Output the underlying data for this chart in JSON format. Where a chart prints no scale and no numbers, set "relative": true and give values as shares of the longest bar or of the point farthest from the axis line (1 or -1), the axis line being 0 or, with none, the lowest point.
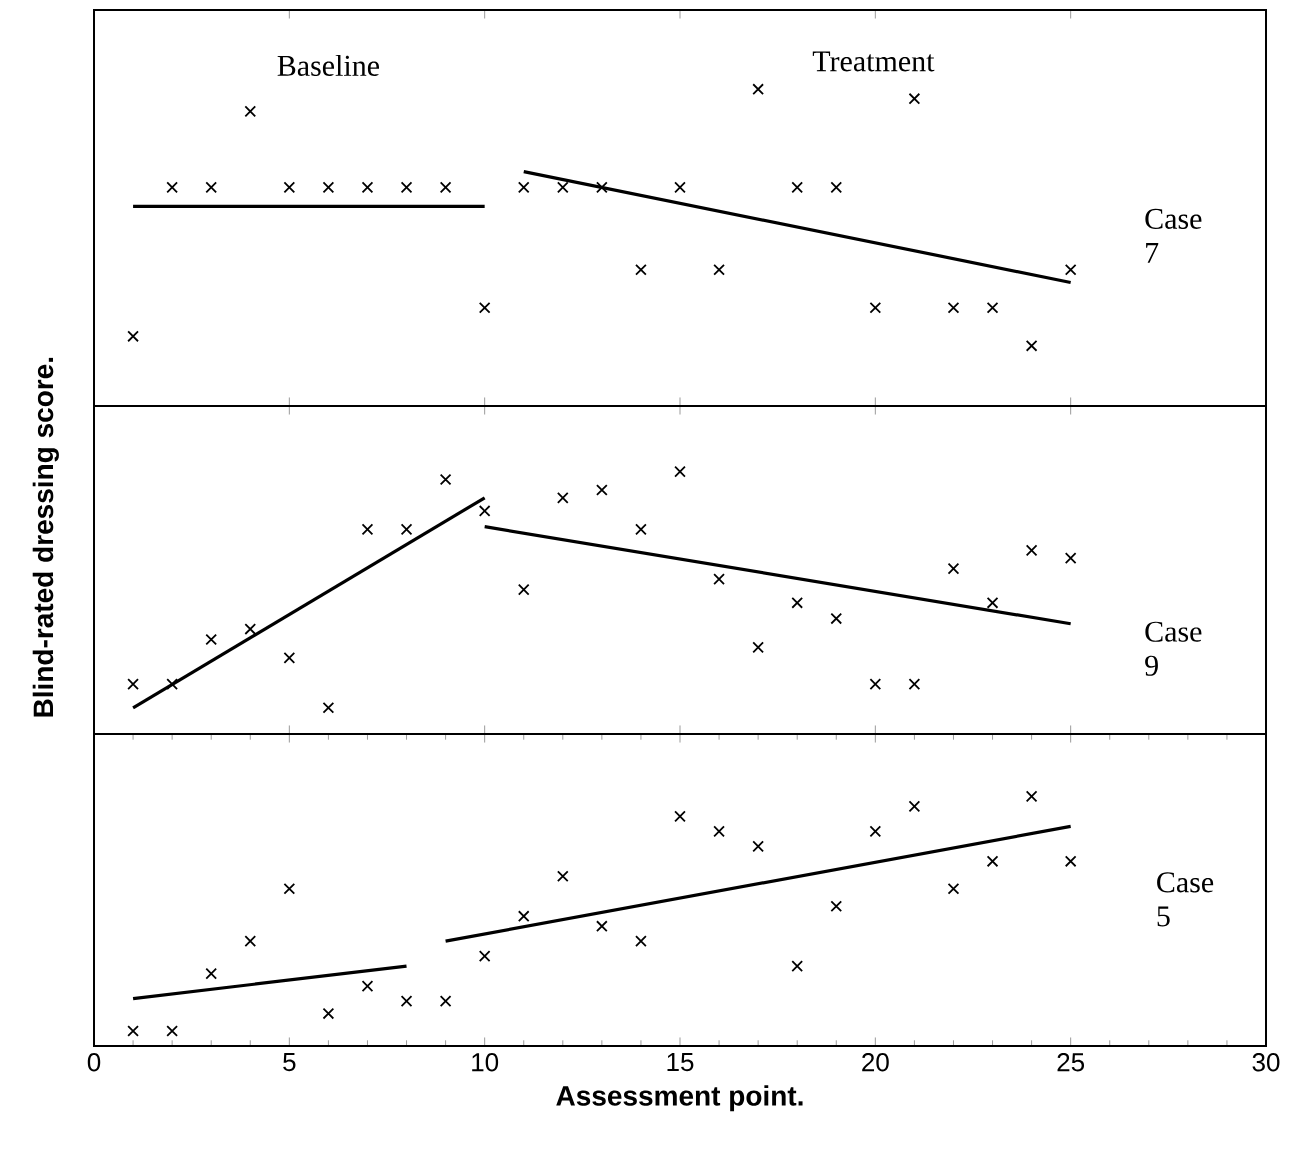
{
  "chart_data": [
    {
      "type": "scatter",
      "relative": true,
      "xlim": [
        0,
        30
      ],
      "xticks": [
        0,
        5,
        10,
        15,
        20,
        25,
        30
      ],
      "tick_labels": false,
      "annotations": [
        "Baseline",
        "Treatment",
        "Case 7"
      ],
      "series": [
        {
          "marker": "cross",
          "color": "#000000",
          "x": [
            1,
            2,
            3,
            4,
            5,
            6,
            7,
            8,
            9,
            10,
            11,
            12,
            13,
            14,
            15,
            16,
            17,
            18,
            19,
            20,
            21,
            22,
            23,
            24,
            25
          ],
          "values": [
            0.22,
            0.69,
            0.69,
            0.93,
            0.69,
            0.69,
            0.69,
            0.69,
            0.69,
            0.31,
            0.69,
            0.69,
            0.69,
            0.43,
            0.69,
            0.43,
            1,
            0.69,
            0.69,
            0.31,
            0.97,
            0.31,
            0.31,
            0.19,
            0.43
          ]
        },
        {
          "type": "line",
          "color": "#000000",
          "x": [
            1,
            10
          ],
          "values": [
            0.63,
            0.63
          ]
        },
        {
          "type": "line",
          "color": "#000000",
          "x": [
            11,
            25
          ],
          "values": [
            0.74,
            0.39
          ]
        }
      ]
    },
    {
      "type": "scatter",
      "relative": true,
      "xlim": [
        0,
        30
      ],
      "xticks": [
        0,
        5,
        10,
        15,
        20,
        25,
        30
      ],
      "tick_labels": false,
      "ylabel": "Blind-rated dressing score.",
      "annotations": [
        "Case 9"
      ],
      "series": [
        {
          "marker": "cross",
          "color": "#000000",
          "x": [
            1,
            2,
            3,
            4,
            5,
            6,
            7,
            8,
            9,
            10,
            11,
            12,
            13,
            14,
            15,
            16,
            17,
            18,
            19,
            20,
            21,
            22,
            23,
            24,
            25
          ],
          "values": [
            0.19,
            0.19,
            0.36,
            0.4,
            0.29,
            0.1,
            0.78,
            0.78,
            0.97,
            0.85,
            0.55,
            0.9,
            0.93,
            0.78,
            1,
            0.59,
            0.33,
            0.5,
            0.44,
            0.19,
            0.19,
            0.63,
            0.5,
            0.7,
            0.67
          ]
        },
        {
          "type": "line",
          "color": "#000000",
          "x": [
            1,
            10
          ],
          "values": [
            0.1,
            0.9
          ]
        },
        {
          "type": "line",
          "color": "#000000",
          "x": [
            10,
            25
          ],
          "values": [
            0.79,
            0.42
          ]
        }
      ]
    },
    {
      "type": "scatter",
      "relative": true,
      "xlim": [
        0,
        30
      ],
      "xticks": [
        0,
        5,
        10,
        15,
        20,
        25,
        30
      ],
      "tick_labels": "x",
      "xlabel": "Assessment point.",
      "annotations": [
        "Case 5"
      ],
      "series": [
        {
          "marker": "cross",
          "color": "#000000",
          "x": [
            1,
            2,
            3,
            4,
            5,
            6,
            7,
            8,
            9,
            10,
            11,
            12,
            13,
            14,
            15,
            16,
            17,
            18,
            19,
            20,
            21,
            22,
            23,
            24,
            25
          ],
          "values": [
            0.06,
            0.06,
            0.29,
            0.42,
            0.63,
            0.13,
            0.24,
            0.18,
            0.18,
            0.36,
            0.52,
            0.68,
            0.48,
            0.42,
            0.92,
            0.86,
            0.8,
            0.32,
            0.56,
            0.86,
            0.96,
            0.63,
            0.74,
            1,
            0.74
          ]
        },
        {
          "type": "line",
          "color": "#000000",
          "x": [
            1,
            8
          ],
          "values": [
            0.19,
            0.32
          ]
        },
        {
          "type": "line",
          "color": "#000000",
          "x": [
            9,
            25
          ],
          "values": [
            0.42,
            0.88
          ]
        }
      ]
    }
  ]
}
